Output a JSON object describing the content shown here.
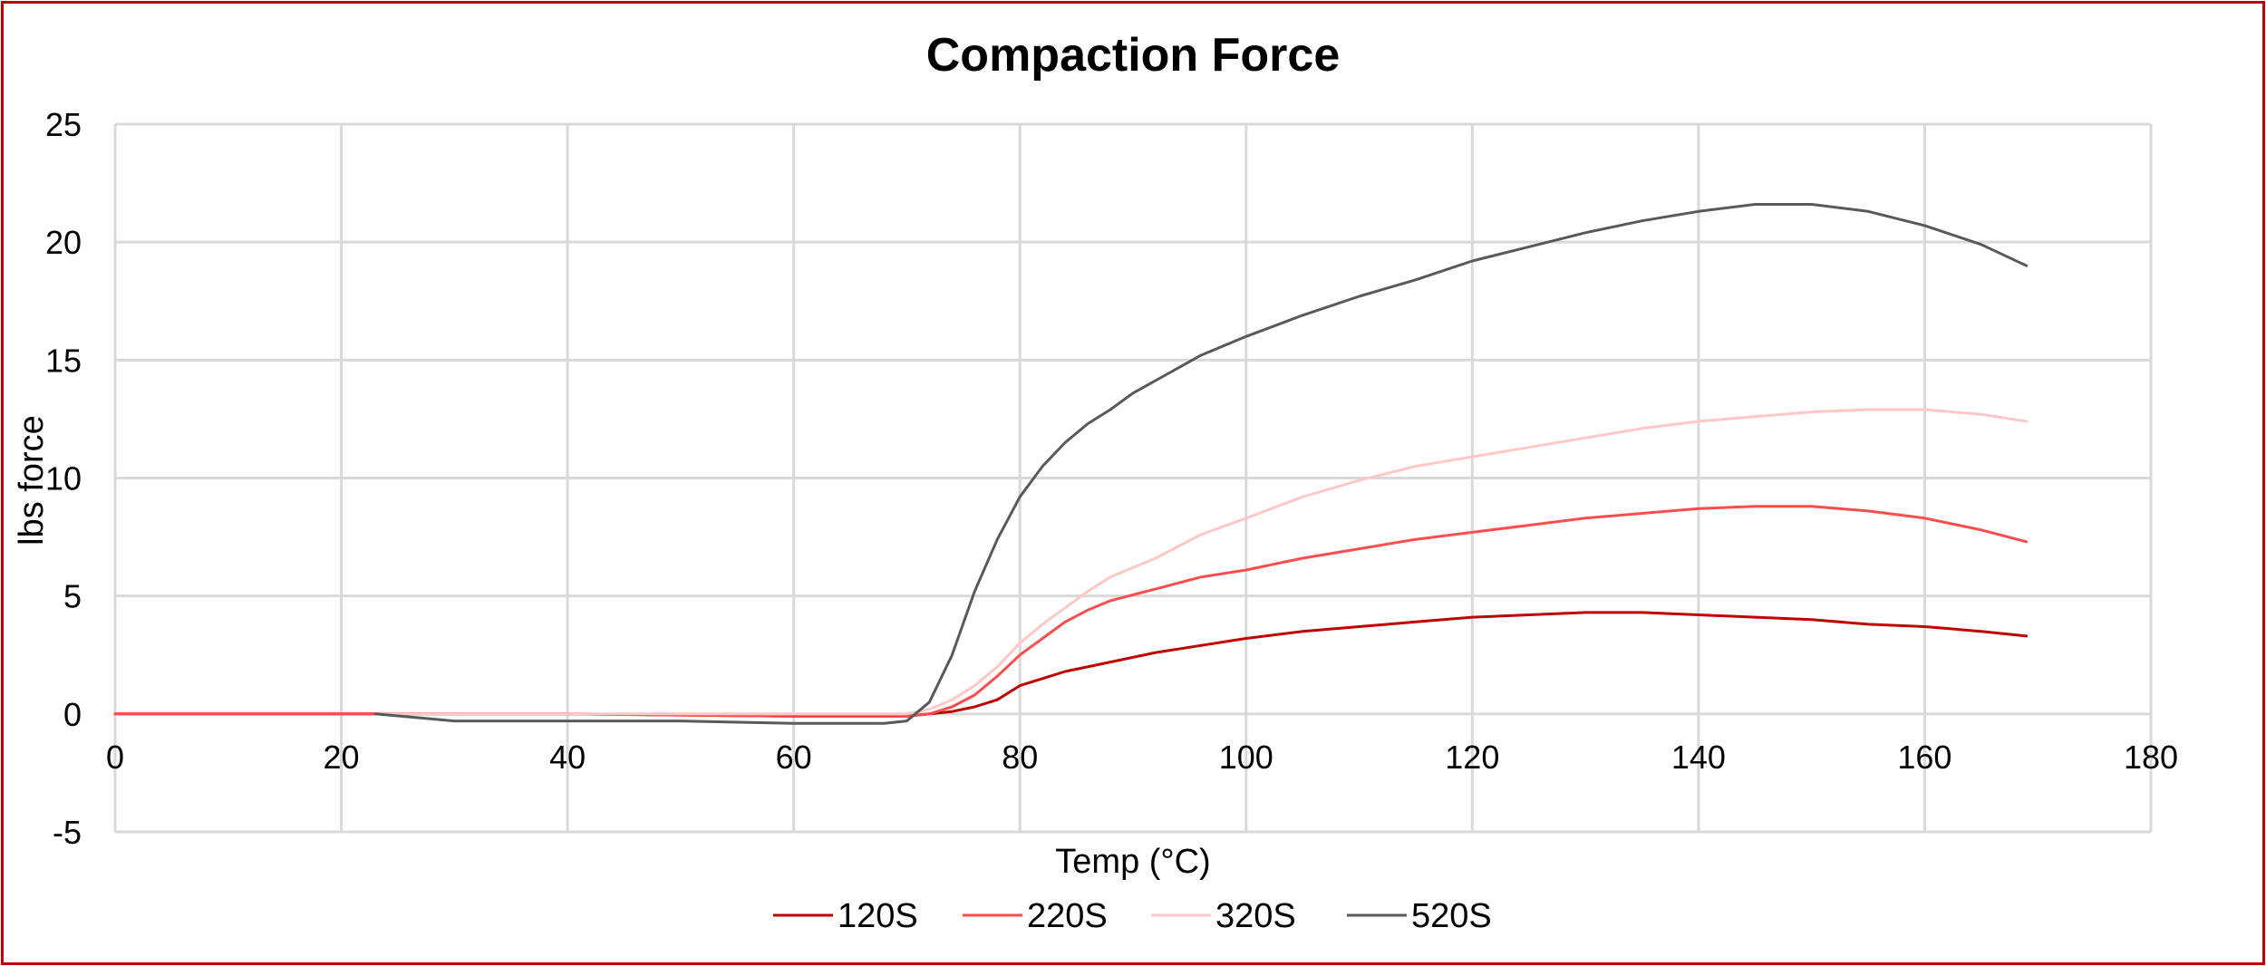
{
  "chart_data": {
    "type": "line",
    "title": "Compaction Force",
    "xlabel": "Temp (°C)",
    "ylabel": "lbs force",
    "xlim": [
      0,
      180
    ],
    "ylim": [
      -5,
      25
    ],
    "xticks": [
      "0",
      "20",
      "40",
      "60",
      "80",
      "100",
      "120",
      "140",
      "160",
      "180"
    ],
    "yticks": [
      "-5",
      "0",
      "5",
      "10",
      "15",
      "20",
      "25"
    ],
    "grid": true,
    "legend_position": "bottom",
    "series": [
      {
        "name": "120S",
        "color": "#c00000",
        "points": [
          [
            0,
            0
          ],
          [
            20,
            0
          ],
          [
            40,
            0
          ],
          [
            60,
            -0.1
          ],
          [
            70,
            -0.1
          ],
          [
            72,
            0
          ],
          [
            74,
            0.1
          ],
          [
            76,
            0.3
          ],
          [
            78,
            0.6
          ],
          [
            80,
            1.2
          ],
          [
            82,
            1.5
          ],
          [
            84,
            1.8
          ],
          [
            88,
            2.2
          ],
          [
            92,
            2.6
          ],
          [
            96,
            2.9
          ],
          [
            100,
            3.2
          ],
          [
            105,
            3.5
          ],
          [
            110,
            3.7
          ],
          [
            115,
            3.9
          ],
          [
            120,
            4.1
          ],
          [
            125,
            4.2
          ],
          [
            130,
            4.3
          ],
          [
            135,
            4.3
          ],
          [
            140,
            4.2
          ],
          [
            145,
            4.1
          ],
          [
            150,
            4.0
          ],
          [
            155,
            3.8
          ],
          [
            160,
            3.7
          ],
          [
            165,
            3.5
          ],
          [
            169,
            3.3
          ]
        ]
      },
      {
        "name": "220S",
        "color": "#ff4d4d",
        "points": [
          [
            0,
            0
          ],
          [
            20,
            0
          ],
          [
            40,
            0
          ],
          [
            60,
            -0.1
          ],
          [
            70,
            -0.1
          ],
          [
            72,
            0
          ],
          [
            74,
            0.3
          ],
          [
            76,
            0.8
          ],
          [
            78,
            1.6
          ],
          [
            80,
            2.5
          ],
          [
            82,
            3.2
          ],
          [
            84,
            3.9
          ],
          [
            86,
            4.4
          ],
          [
            88,
            4.8
          ],
          [
            92,
            5.3
          ],
          [
            96,
            5.8
          ],
          [
            100,
            6.1
          ],
          [
            105,
            6.6
          ],
          [
            110,
            7.0
          ],
          [
            115,
            7.4
          ],
          [
            120,
            7.7
          ],
          [
            125,
            8.0
          ],
          [
            130,
            8.3
          ],
          [
            135,
            8.5
          ],
          [
            140,
            8.7
          ],
          [
            145,
            8.8
          ],
          [
            150,
            8.8
          ],
          [
            155,
            8.6
          ],
          [
            160,
            8.3
          ],
          [
            165,
            7.8
          ],
          [
            169,
            7.3
          ]
        ]
      },
      {
        "name": "320S",
        "color": "#ffc7c7",
        "points": [
          [
            23,
            0
          ],
          [
            30,
            0
          ],
          [
            40,
            0
          ],
          [
            50,
            0
          ],
          [
            60,
            0
          ],
          [
            68,
            0
          ],
          [
            70,
            0
          ],
          [
            72,
            0.2
          ],
          [
            74,
            0.6
          ],
          [
            76,
            1.2
          ],
          [
            78,
            2.0
          ],
          [
            80,
            3.0
          ],
          [
            82,
            3.8
          ],
          [
            84,
            4.5
          ],
          [
            86,
            5.2
          ],
          [
            88,
            5.8
          ],
          [
            92,
            6.6
          ],
          [
            96,
            7.6
          ],
          [
            100,
            8.3
          ],
          [
            105,
            9.2
          ],
          [
            110,
            9.9
          ],
          [
            115,
            10.5
          ],
          [
            120,
            10.9
          ],
          [
            125,
            11.3
          ],
          [
            130,
            11.7
          ],
          [
            135,
            12.1
          ],
          [
            140,
            12.4
          ],
          [
            145,
            12.6
          ],
          [
            150,
            12.8
          ],
          [
            155,
            12.9
          ],
          [
            160,
            12.9
          ],
          [
            165,
            12.7
          ],
          [
            169,
            12.4
          ]
        ]
      },
      {
        "name": "520S",
        "color": "#595959",
        "points": [
          [
            23,
            0
          ],
          [
            30,
            -0.3
          ],
          [
            40,
            -0.3
          ],
          [
            50,
            -0.3
          ],
          [
            60,
            -0.4
          ],
          [
            68,
            -0.4
          ],
          [
            70,
            -0.3
          ],
          [
            72,
            0.5
          ],
          [
            74,
            2.5
          ],
          [
            76,
            5.2
          ],
          [
            78,
            7.4
          ],
          [
            80,
            9.2
          ],
          [
            82,
            10.5
          ],
          [
            84,
            11.5
          ],
          [
            86,
            12.3
          ],
          [
            88,
            12.9
          ],
          [
            90,
            13.6
          ],
          [
            93,
            14.4
          ],
          [
            96,
            15.2
          ],
          [
            100,
            16.0
          ],
          [
            105,
            16.9
          ],
          [
            110,
            17.7
          ],
          [
            115,
            18.4
          ],
          [
            120,
            19.2
          ],
          [
            125,
            19.8
          ],
          [
            130,
            20.4
          ],
          [
            135,
            20.9
          ],
          [
            140,
            21.3
          ],
          [
            145,
            21.6
          ],
          [
            150,
            21.6
          ],
          [
            155,
            21.3
          ],
          [
            160,
            20.7
          ],
          [
            165,
            19.9
          ],
          [
            169,
            19.0
          ]
        ]
      }
    ]
  }
}
